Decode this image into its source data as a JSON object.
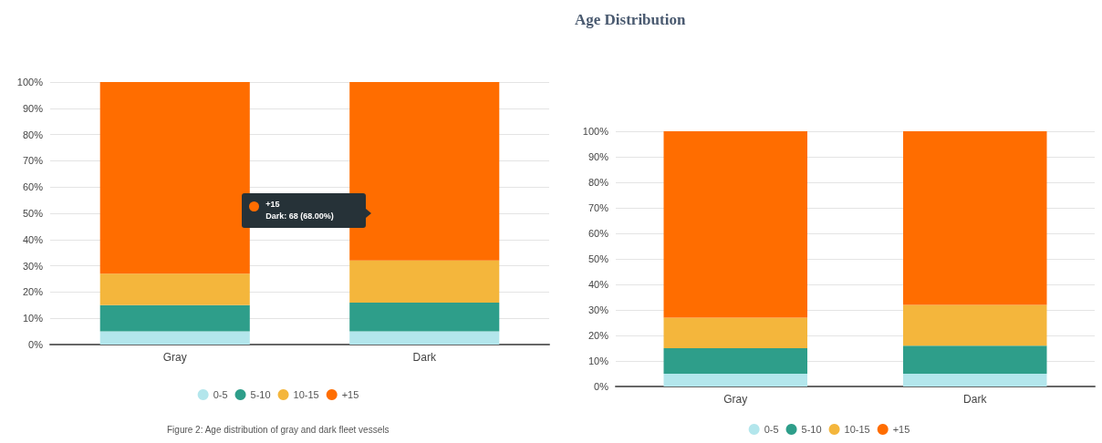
{
  "chart_data": [
    {
      "type": "bar",
      "stacked": true,
      "categories": [
        "Gray",
        "Dark"
      ],
      "series": [
        {
          "name": "0-5",
          "color": "#b3e6ec",
          "values": [
            5,
            5
          ]
        },
        {
          "name": "5-10",
          "color": "#2e9e8a",
          "values": [
            10,
            11
          ]
        },
        {
          "name": "10-15",
          "color": "#f4b63c",
          "values": [
            12,
            16
          ]
        },
        {
          "name": "+15",
          "color": "#ff6d00",
          "values": [
            73,
            68
          ]
        }
      ],
      "ylim": [
        0,
        100
      ],
      "yticks": [
        {
          "value": 0,
          "label": "0%"
        },
        {
          "value": 10,
          "label": "10%"
        },
        {
          "value": 20,
          "label": "20%"
        },
        {
          "value": 30,
          "label": "30%"
        },
        {
          "value": 40,
          "label": "40%"
        },
        {
          "value": 50,
          "label": "50%"
        },
        {
          "value": 60,
          "label": "60%"
        },
        {
          "value": 70,
          "label": "70%"
        },
        {
          "value": 80,
          "label": "80%"
        },
        {
          "value": 90,
          "label": "90%"
        },
        {
          "value": 100,
          "label": "100%"
        }
      ],
      "grid": "y",
      "legend": "bottom",
      "annotations": [
        "+15",
        "Dark: 68 (68.00%)",
        "Figure 2: Age distribution of gray and dark fleet vessels"
      ]
    },
    {
      "type": "bar",
      "stacked": true,
      "title": "Age Distribution",
      "categories": [
        "Gray",
        "Dark"
      ],
      "series": [
        {
          "name": "0-5",
          "color": "#b3e6ec",
          "values": [
            5,
            5
          ]
        },
        {
          "name": "5-10",
          "color": "#2e9e8a",
          "values": [
            10,
            11
          ]
        },
        {
          "name": "10-15",
          "color": "#f4b63c",
          "values": [
            12,
            16
          ]
        },
        {
          "name": "+15",
          "color": "#ff6d00",
          "values": [
            73,
            68
          ]
        }
      ],
      "ylim": [
        0,
        100
      ],
      "yticks": [
        {
          "value": 0,
          "label": "0%"
        },
        {
          "value": 10,
          "label": "10%"
        },
        {
          "value": 20,
          "label": "20%"
        },
        {
          "value": 30,
          "label": "30%"
        },
        {
          "value": 40,
          "label": "40%"
        },
        {
          "value": 50,
          "label": "50%"
        },
        {
          "value": 60,
          "label": "60%"
        },
        {
          "value": 70,
          "label": "70%"
        },
        {
          "value": 80,
          "label": "80%"
        },
        {
          "value": 90,
          "label": "90%"
        },
        {
          "value": 100,
          "label": "100%"
        }
      ],
      "grid": "y",
      "legend": "bottom"
    }
  ]
}
